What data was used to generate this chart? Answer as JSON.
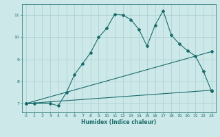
{
  "xlabel": "Humidex (Indice chaleur)",
  "ylabel": "",
  "background_color": "#cce8e8",
  "line_color": "#1a6b6b",
  "xlim": [
    -0.5,
    23.5
  ],
  "ylim": [
    6.6,
    11.5
  ],
  "yticks": [
    7,
    8,
    9,
    10,
    11
  ],
  "xticks": [
    0,
    1,
    2,
    3,
    4,
    5,
    6,
    7,
    8,
    9,
    10,
    11,
    12,
    13,
    14,
    15,
    16,
    17,
    18,
    19,
    20,
    21,
    22,
    23
  ],
  "series1_x": [
    0,
    1,
    3,
    4,
    5,
    6,
    7,
    8,
    9,
    10,
    11,
    12,
    13,
    14,
    15,
    16,
    17,
    18,
    19,
    20,
    21,
    22,
    23
  ],
  "series1_y": [
    7.0,
    7.0,
    7.0,
    6.9,
    7.5,
    8.3,
    8.8,
    9.3,
    10.0,
    10.4,
    11.05,
    11.0,
    10.8,
    10.35,
    9.6,
    10.55,
    11.2,
    10.1,
    9.7,
    9.4,
    9.15,
    8.45,
    7.55
  ],
  "series2_x": [
    0,
    23
  ],
  "series2_y": [
    7.0,
    9.35
  ],
  "series3_x": [
    0,
    23
  ],
  "series3_y": [
    7.0,
    7.6
  ],
  "font_color": "#1a6b6b",
  "grid_color": "#aacfcf"
}
